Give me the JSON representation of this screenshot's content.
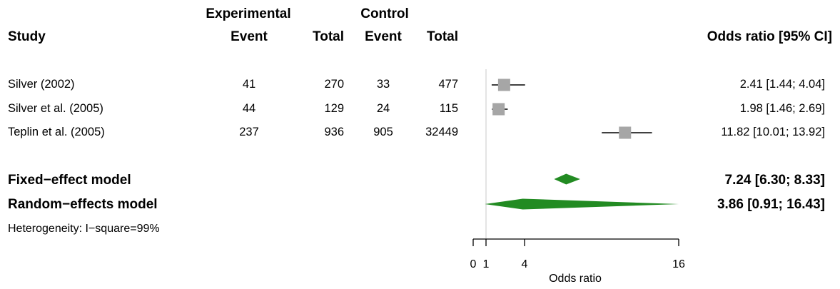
{
  "chart_data": {
    "type": "forest",
    "header": {
      "group_experimental": "Experimental",
      "group_control": "Control",
      "study": "Study",
      "event_exp": "Event",
      "total_exp": "Total",
      "event_ctrl": "Event",
      "total_ctrl": "Total",
      "effect": "Odds ratio [95% CI]"
    },
    "studies": [
      {
        "name": "Silver (2002)",
        "event_exp": "41",
        "total_exp": "270",
        "event_ctrl": "33",
        "total_ctrl": "477",
        "or": 2.41,
        "lower": 1.44,
        "upper": 4.04,
        "label": "2.41 [1.44; 4.04]"
      },
      {
        "name": "Silver et al. (2005)",
        "event_exp": "44",
        "total_exp": "129",
        "event_ctrl": "24",
        "total_ctrl": "115",
        "or": 1.98,
        "lower": 1.46,
        "upper": 2.69,
        "label": "1.98 [1.46; 2.69]"
      },
      {
        "name": "Teplin et al. (2005)",
        "event_exp": "237",
        "total_exp": "936",
        "event_ctrl": "905",
        "total_ctrl": "32449",
        "or": 11.82,
        "lower": 10.01,
        "upper": 13.92,
        "label": "11.82 [10.01; 13.92]"
      }
    ],
    "models": [
      {
        "name": "Fixed−effect model",
        "or": 7.24,
        "lower": 6.3,
        "upper": 8.33,
        "label": "7.24 [6.30; 8.33]"
      },
      {
        "name": "Random−effects model",
        "or": 3.86,
        "lower": 0.91,
        "upper": 16.43,
        "label": "3.86 [0.91; 16.43]"
      }
    ],
    "heterogeneity": "Heterogeneity: I−square=99%",
    "xaxis": {
      "label": "Odds ratio",
      "ticks": [
        0,
        1,
        4,
        16
      ],
      "tick_labels": [
        "0",
        "1",
        "4",
        "16"
      ],
      "range": [
        0,
        16
      ],
      "reference_line": 1
    },
    "colors": {
      "square": "#a6a6a6",
      "diamond": "#228b22",
      "line": "#000000",
      "reference": "#c8c8c8"
    }
  }
}
